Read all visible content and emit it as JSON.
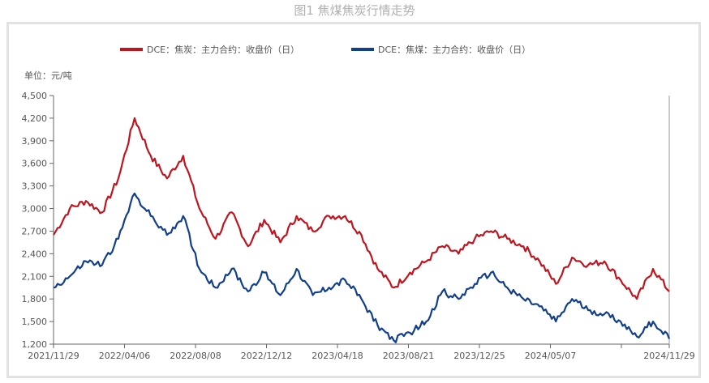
{
  "title": "图1 焦煤焦炭行情走势",
  "chart_data": {
    "type": "line",
    "unit_label": "单位：元/吨",
    "ylim": [
      1200,
      4500
    ],
    "yticks": [
      1200,
      1500,
      1800,
      2100,
      2400,
      2700,
      3000,
      3300,
      3600,
      3900,
      4200,
      4500
    ],
    "ytick_labels": [
      "1,200",
      "1,500",
      "1,800",
      "2,100",
      "2,400",
      "2,700",
      "3,000",
      "3,300",
      "3,600",
      "3,900",
      "4,200",
      "4,500"
    ],
    "xtick_labels": [
      "2021/11/29",
      "2022/04/06",
      "2022/08/08",
      "2022/12/12",
      "2023/04/18",
      "2023/08/21",
      "2023/12/25",
      "2024/05/07",
      "",
      "2024/11/29"
    ],
    "x_start": "2021/11/29",
    "x_end": "2024/11/29",
    "legend_position": "top-center",
    "series": [
      {
        "name": "DCE：焦炭：主力合约：收盘价（日）",
        "color": "#c0141f",
        "values": [
          2650,
          3000,
          3100,
          2950,
          3400,
          4200,
          3700,
          3400,
          3700,
          3000,
          2600,
          2950,
          2500,
          2850,
          2550,
          2900,
          2700,
          2900,
          2900,
          2650,
          2200,
          1950,
          2150,
          2300,
          2500,
          2400,
          2600,
          2700,
          2600,
          2500,
          2300,
          2000,
          2350,
          2250,
          2300,
          2050,
          1800,
          2200,
          1900
        ]
      },
      {
        "name": "DCE：焦煤：主力合约：收盘价（日）",
        "color": "#123f8c",
        "values": [
          1950,
          2100,
          2300,
          2250,
          2600,
          3200,
          2900,
          2650,
          2900,
          2200,
          1950,
          2200,
          1900,
          2150,
          1850,
          2200,
          1850,
          1950,
          2050,
          1800,
          1450,
          1250,
          1350,
          1500,
          1900,
          1800,
          2000,
          2150,
          1950,
          1800,
          1700,
          1500,
          1800,
          1650,
          1600,
          1500,
          1300,
          1500,
          1270
        ]
      }
    ]
  }
}
